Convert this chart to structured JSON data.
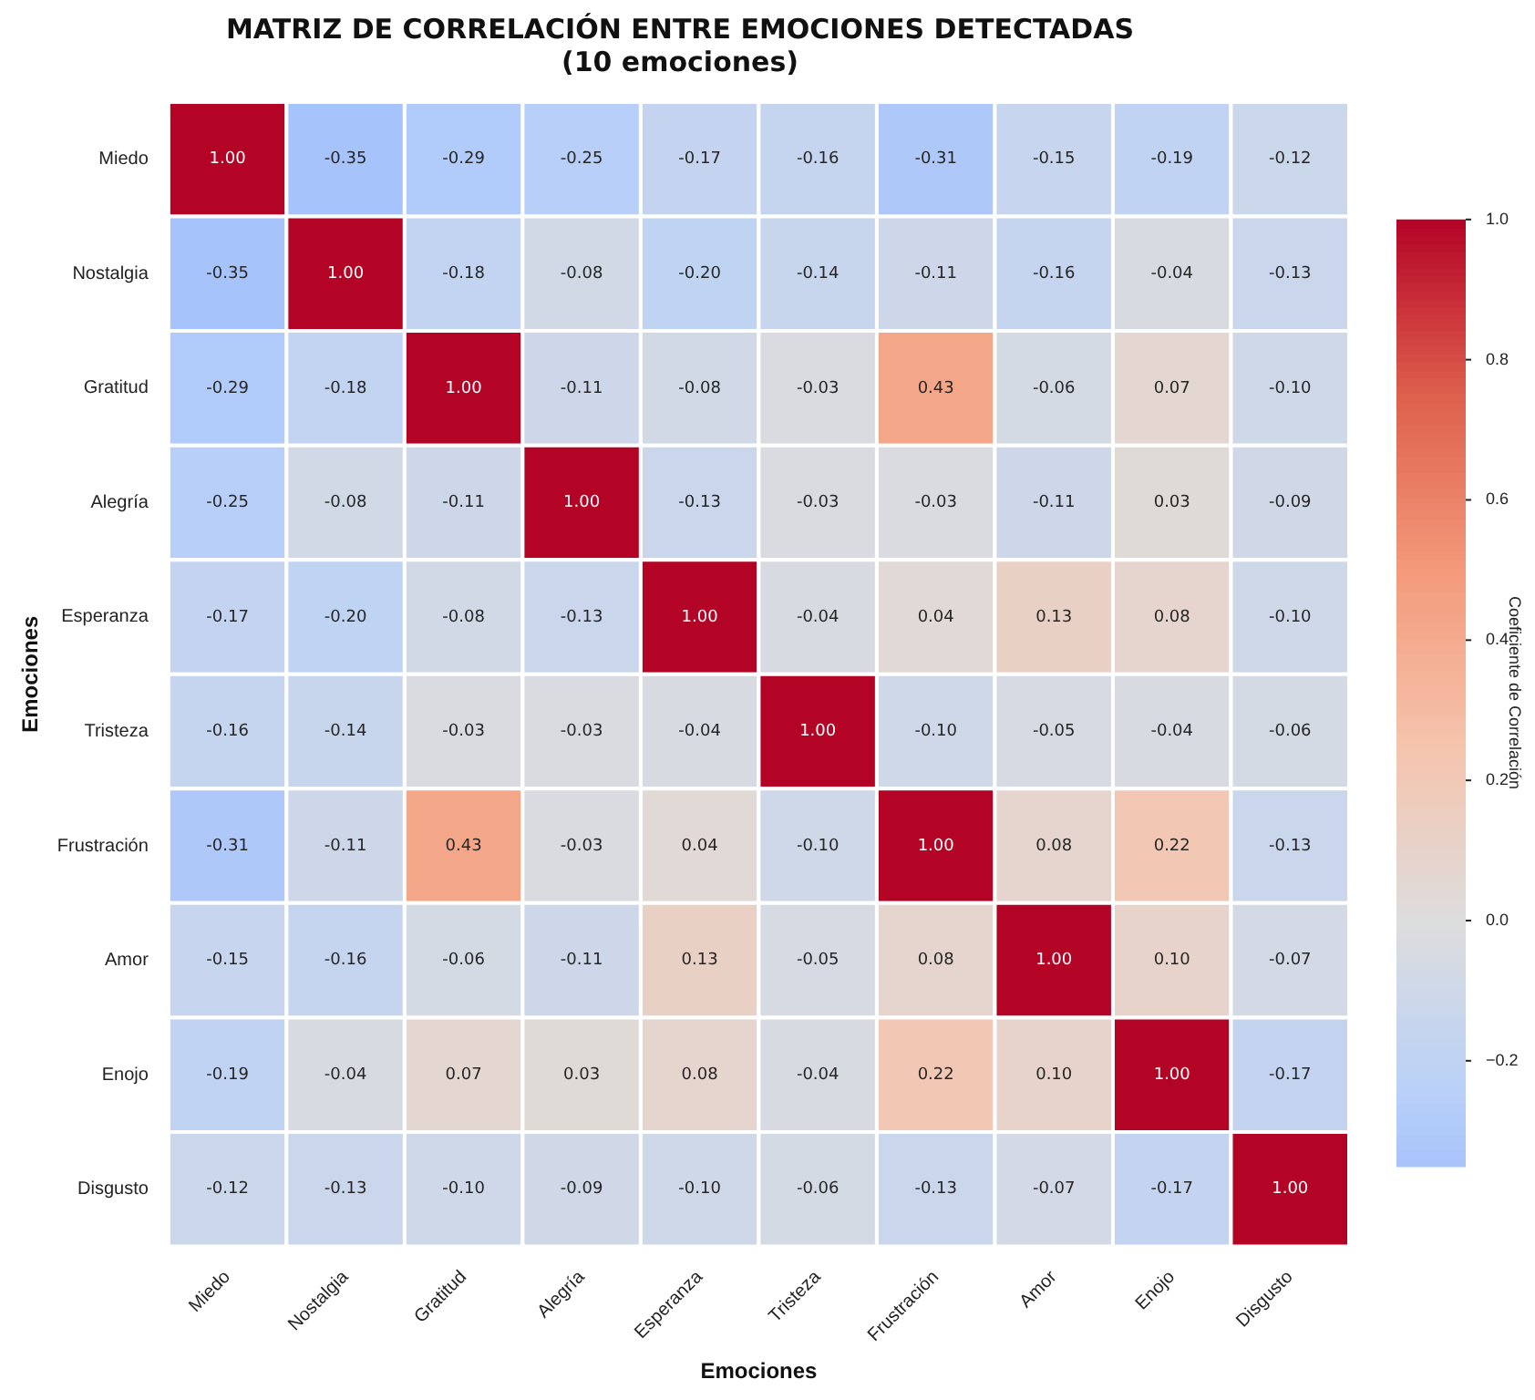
{
  "chart_data": {
    "type": "heatmap",
    "title": "MATRIZ DE CORRELACIÓN ENTRE EMOCIONES DETECTADAS",
    "subtitle": "(10 emociones)",
    "xlabel": "Emociones",
    "ylabel": "Emociones",
    "clabel": "Coeficiente de Correlación",
    "categories": [
      "Miedo",
      "Nostalgia",
      "Gratitud",
      "Alegría",
      "Esperanza",
      "Tristeza",
      "Frustración",
      "Amor",
      "Enojo",
      "Disgusto"
    ],
    "y_categories": [
      "Miedo",
      "Nostalgia",
      "Gratitud",
      "Alegría",
      "Esperanza",
      "Tristeza",
      "Frustración",
      "Amor",
      "Enojo",
      "Disgusto"
    ],
    "cells": [
      [
        1.0,
        -0.35,
        -0.29,
        -0.25,
        -0.17,
        -0.16,
        -0.31,
        -0.15,
        -0.19,
        -0.12
      ],
      [
        -0.35,
        1.0,
        -0.18,
        -0.08,
        -0.2,
        -0.14,
        -0.11,
        -0.16,
        -0.04,
        -0.13
      ],
      [
        -0.29,
        -0.18,
        1.0,
        -0.11,
        -0.08,
        -0.03,
        0.43,
        -0.06,
        0.07,
        -0.1
      ],
      [
        -0.25,
        -0.08,
        -0.11,
        1.0,
        -0.13,
        -0.03,
        -0.03,
        -0.11,
        0.03,
        -0.09
      ],
      [
        -0.17,
        -0.2,
        -0.08,
        -0.13,
        1.0,
        -0.04,
        0.04,
        0.13,
        0.08,
        -0.1
      ],
      [
        -0.16,
        -0.14,
        -0.03,
        -0.03,
        -0.04,
        1.0,
        -0.1,
        -0.05,
        -0.04,
        -0.06
      ],
      [
        -0.31,
        -0.11,
        0.43,
        -0.03,
        0.04,
        -0.1,
        1.0,
        0.08,
        0.22,
        -0.13
      ],
      [
        -0.15,
        -0.16,
        -0.06,
        -0.11,
        0.13,
        -0.05,
        0.08,
        1.0,
        0.1,
        -0.07
      ],
      [
        -0.19,
        -0.04,
        0.07,
        0.03,
        0.08,
        -0.04,
        0.22,
        0.1,
        1.0,
        -0.17
      ],
      [
        -0.12,
        -0.13,
        -0.1,
        -0.09,
        -0.1,
        -0.06,
        -0.13,
        -0.07,
        -0.17,
        1.0
      ]
    ],
    "cell_labels": [
      [
        "1.00",
        "-0.35",
        "-0.29",
        "-0.25",
        "-0.17",
        "-0.16",
        "-0.31",
        "-0.15",
        "-0.19",
        "-0.12"
      ],
      [
        "-0.35",
        "1.00",
        "-0.18",
        "-0.08",
        "-0.20",
        "-0.14",
        "-0.11",
        "-0.16",
        "-0.04",
        "-0.13"
      ],
      [
        "-0.29",
        "-0.18",
        "1.00",
        "-0.11",
        "-0.08",
        "-0.03",
        "0.43",
        "-0.06",
        "0.07",
        "-0.10"
      ],
      [
        "-0.25",
        "-0.08",
        "-0.11",
        "1.00",
        "-0.13",
        "-0.03",
        "-0.03",
        "-0.11",
        "0.03",
        "-0.09"
      ],
      [
        "-0.17",
        "-0.20",
        "-0.08",
        "-0.13",
        "1.00",
        "-0.04",
        "0.04",
        "0.13",
        "0.08",
        "-0.10"
      ],
      [
        "-0.16",
        "-0.14",
        "-0.03",
        "-0.03",
        "-0.04",
        "1.00",
        "-0.10",
        "-0.05",
        "-0.04",
        "-0.06"
      ],
      [
        "-0.31",
        "-0.11",
        "0.43",
        "-0.03",
        "0.04",
        "-0.10",
        "1.00",
        "0.08",
        "0.22",
        "-0.13"
      ],
      [
        "-0.15",
        "-0.16",
        "-0.06",
        "-0.11",
        "0.13",
        "-0.05",
        "0.08",
        "1.00",
        "0.10",
        "-0.07"
      ],
      [
        "-0.19",
        "-0.04",
        "0.07",
        "0.03",
        "0.08",
        "-0.04",
        "0.22",
        "0.10",
        "1.00",
        "-0.17"
      ],
      [
        "-0.12",
        "-0.13",
        "-0.10",
        "-0.09",
        "-0.10",
        "-0.06",
        "-0.13",
        "-0.07",
        "-0.17",
        "1.00"
      ]
    ],
    "data_labels": true,
    "clim": [
      -0.35,
      1.0
    ],
    "cticks": [
      {
        "value": -0.2,
        "label": "−0.2"
      },
      {
        "value": 0,
        "label": "0.0"
      },
      {
        "value": 0.2,
        "label": "0.2"
      },
      {
        "value": 0.4,
        "label": "0.4"
      },
      {
        "value": 0.6,
        "label": "0.6"
      },
      {
        "value": 0.8,
        "label": "0.8"
      },
      {
        "value": 1.0,
        "label": "1.0"
      }
    ]
  }
}
